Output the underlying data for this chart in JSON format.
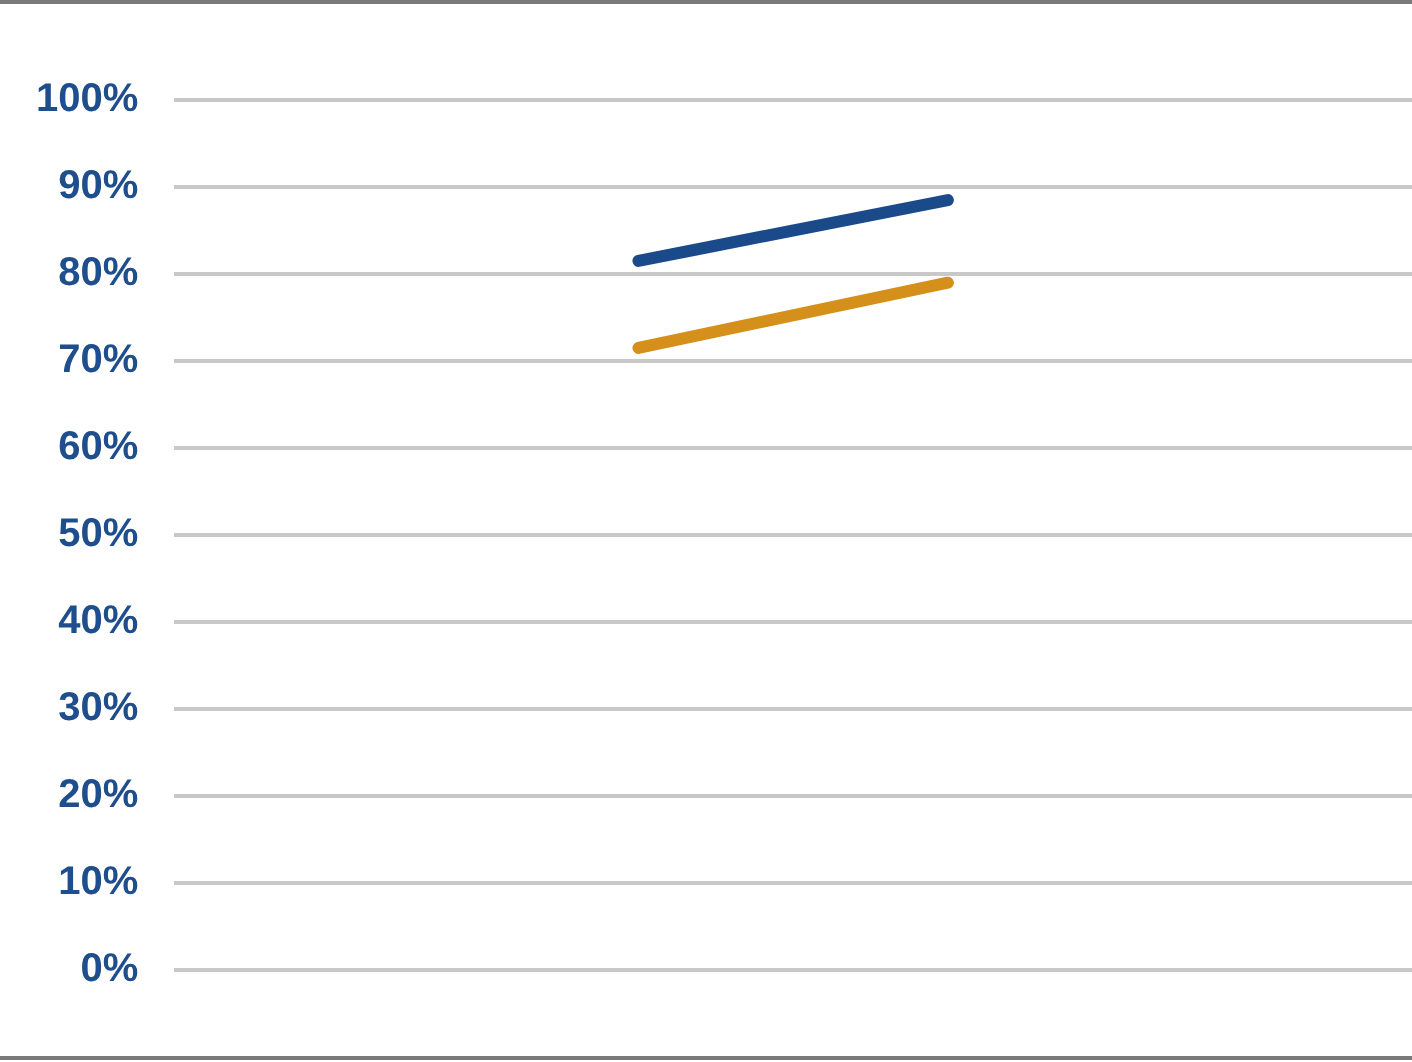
{
  "chart_data": {
    "type": "line",
    "categories": [
      null,
      null,
      null,
      null
    ],
    "series": [
      {
        "color": "#1b4a8a",
        "values": [
          null,
          81.5,
          88.5,
          null
        ]
      },
      {
        "color": "#d4901a",
        "values": [
          null,
          71.5,
          79,
          null
        ]
      }
    ],
    "ylim": [
      0,
      100
    ],
    "yticks": [
      {
        "value": 0,
        "label": "0%"
      },
      {
        "value": 10,
        "label": "10%"
      },
      {
        "value": 20,
        "label": "20%"
      },
      {
        "value": 30,
        "label": "30%"
      },
      {
        "value": 40,
        "label": "40%"
      },
      {
        "value": 50,
        "label": "50%"
      },
      {
        "value": 60,
        "label": "60%"
      },
      {
        "value": 70,
        "label": "70%"
      },
      {
        "value": 80,
        "label": "80%"
      },
      {
        "value": 90,
        "label": "90%"
      },
      {
        "value": 100,
        "label": "100%"
      }
    ],
    "grid": "y",
    "legend": false
  }
}
